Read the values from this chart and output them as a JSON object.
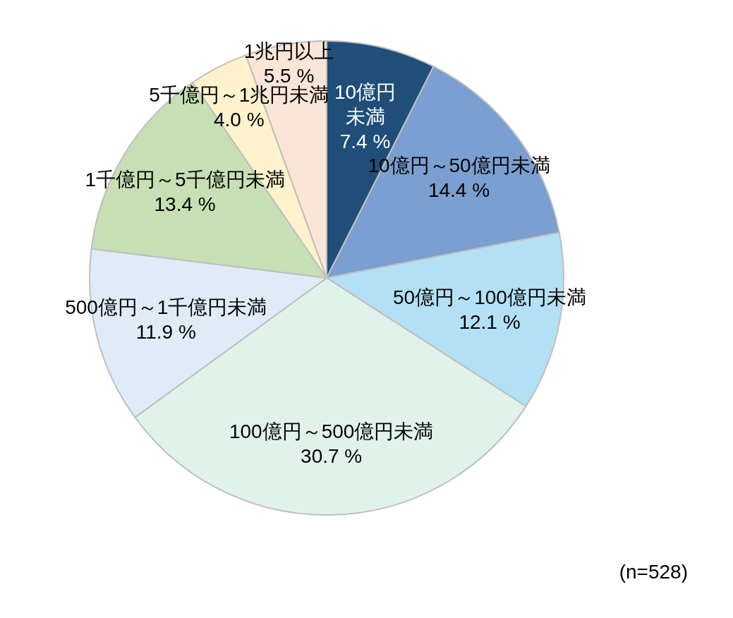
{
  "chart_data": {
    "type": "pie",
    "categories": [
      "10億円未満",
      "10億円～50億円未満",
      "50億円～100億円未満",
      "100億円～500億円未満",
      "500億円～1千億円未満",
      "1千億円～5千億円未満",
      "5千億円～1兆円未満",
      "1兆円以上"
    ],
    "values": [
      7.4,
      14.4,
      12.1,
      30.7,
      11.9,
      13.4,
      4.0,
      5.5
    ],
    "value_labels": [
      "7.4 %",
      "14.4 %",
      "12.1 %",
      "30.7 %",
      "11.9 %",
      "13.4 %",
      "4.0 %",
      "5.5 %"
    ],
    "colors": [
      "#1f4e79",
      "#7a9fd0",
      "#b3e0f4",
      "#e0f2ea",
      "#e0ebf8",
      "#c7dfb4",
      "#fff2cc",
      "#fbe5d6"
    ],
    "annotations": [
      "(n=528)"
    ],
    "legend": false
  }
}
